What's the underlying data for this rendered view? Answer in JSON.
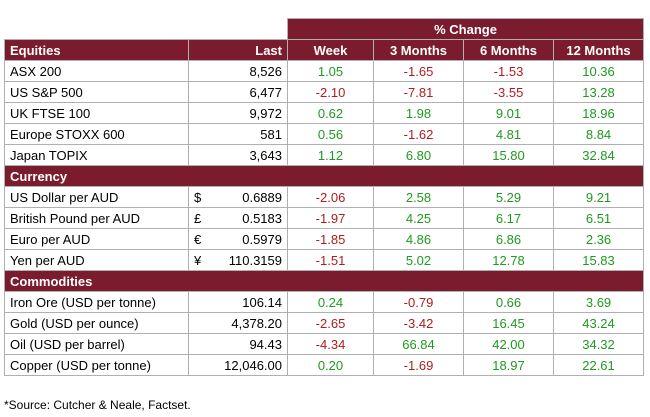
{
  "header": {
    "pct_change": "% Change"
  },
  "columns": {
    "c0": "Equities",
    "c1": "Last",
    "c2": "Week",
    "c3": "3 Months",
    "c4": "6 Months",
    "c5": "12 Months"
  },
  "sections": {
    "currency": "Currency",
    "commodities": "Commodities"
  },
  "colors": {
    "header_bg": "#7b1c2e",
    "positive": "#1f9a1f",
    "negative": "#b01d1d"
  },
  "equities": [
    {
      "name": "ASX 200",
      "last": "8,526",
      "week": "1.05",
      "m3": "-1.65",
      "m6": "-1.53",
      "m12": "10.36"
    },
    {
      "name": "US S&P 500",
      "last": "6,477",
      "week": "-2.10",
      "m3": "-7.81",
      "m6": "-3.55",
      "m12": "13.28"
    },
    {
      "name": "UK FTSE 100",
      "last": "9,972",
      "week": "0.62",
      "m3": "1.98",
      "m6": "9.01",
      "m12": "18.96"
    },
    {
      "name": "Europe STOXX 600",
      "last": "581",
      "week": "0.56",
      "m3": "-1.62",
      "m6": "4.81",
      "m12": "8.84"
    },
    {
      "name": "Japan TOPIX",
      "last": "3,643",
      "week": "1.12",
      "m3": "6.80",
      "m6": "15.80",
      "m12": "32.84"
    }
  ],
  "currency": [
    {
      "name": "US Dollar per AUD",
      "sym": "$",
      "last": "0.6889",
      "week": "-2.06",
      "m3": "2.58",
      "m6": "5.29",
      "m12": "9.21"
    },
    {
      "name": "British Pound per AUD",
      "sym": "£",
      "last": "0.5183",
      "week": "-1.97",
      "m3": "4.25",
      "m6": "6.17",
      "m12": "6.51"
    },
    {
      "name": "Euro per AUD",
      "sym": "€",
      "last": "0.5979",
      "week": "-1.85",
      "m3": "4.86",
      "m6": "6.86",
      "m12": "2.36"
    },
    {
      "name": "Yen per AUD",
      "sym": "¥",
      "last": "110.3159",
      "week": "-1.51",
      "m3": "5.02",
      "m6": "12.78",
      "m12": "15.83"
    }
  ],
  "commodities": [
    {
      "name": "Iron Ore (USD per tonne)",
      "last": "106.14",
      "week": "0.24",
      "m3": "-0.79",
      "m6": "0.66",
      "m12": "3.69"
    },
    {
      "name": "Gold (USD per ounce)",
      "last": "4,378.20",
      "week": "-2.65",
      "m3": "-3.42",
      "m6": "16.45",
      "m12": "43.24"
    },
    {
      "name": "Oil (USD per barrel)",
      "last": "94.43",
      "week": "-4.34",
      "m3": "66.84",
      "m6": "42.00",
      "m12": "34.32"
    },
    {
      "name": "Copper (USD per tonne)",
      "last": "12,046.00",
      "week": "0.20",
      "m3": "-1.69",
      "m6": "18.97",
      "m12": "22.61"
    }
  ],
  "footer": {
    "source": "*Source: Cutcher & Neale, Factset."
  }
}
